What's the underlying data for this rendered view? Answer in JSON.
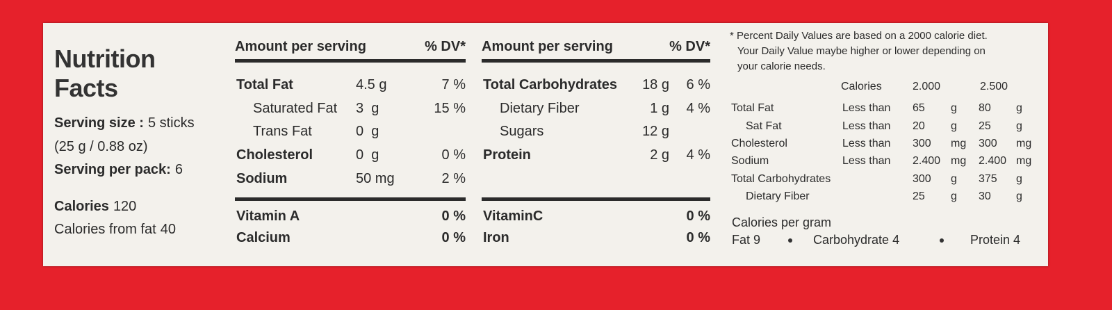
{
  "header": {
    "title": "Nutrition Facts"
  },
  "serving": {
    "size_label": "Serving size :",
    "size": "5 sticks",
    "weight": "(25 g / 0.88 oz)",
    "per_pack_label": "Serving per pack:",
    "per_pack": "6"
  },
  "calories": {
    "label": "Calories",
    "value": "120",
    "from_fat_label": "Calories from fat",
    "from_fat": "40"
  },
  "columns": [
    {
      "amount_header": "Amount per serving",
      "dv_header": "% DV*",
      "rows": [
        {
          "name": "Total Fat",
          "amount": "4.5 g",
          "dv": "7 %",
          "style": "bold"
        },
        {
          "name": "Saturated Fat",
          "amount": "3  g",
          "dv": "15 %",
          "style": "indent"
        },
        {
          "name": "Trans Fat",
          "amount": "0  g",
          "style": "indent"
        },
        {
          "name": "Cholesterol",
          "amount": "0  g",
          "dv": "0 %",
          "style": "bold"
        },
        {
          "name": "Sodium",
          "amount": "50 mg",
          "dv": "2 %",
          "style": "bold"
        }
      ],
      "vitamins": [
        {
          "name": "Vitamin A",
          "dv": "0 %"
        },
        {
          "name": "Calcium",
          "dv": "0 %"
        }
      ]
    },
    {
      "amount_header": "Amount per serving",
      "dv_header": "% DV*",
      "rows": [
        {
          "name": "Total Carbohydrates",
          "amount": "18 g",
          "dv": "6 %",
          "style": "bold"
        },
        {
          "name": "Dietary Fiber",
          "amount": "1 g",
          "dv": "4 %",
          "style": "indent"
        },
        {
          "name": "Sugars",
          "amount": "12 g",
          "style": "indent"
        },
        {
          "name": "Protein",
          "amount": "2 g",
          "dv": "4 %",
          "style": "bold"
        }
      ],
      "vitamins": [
        {
          "name": "VitaminC",
          "dv": "0 %"
        },
        {
          "name": "Iron",
          "dv": "0 %"
        }
      ]
    }
  ],
  "footnote": {
    "lines": [
      "* Percent Daily Values are based on a 2000 calorie diet.",
      "Your Daily Value maybe higher or lower depending on",
      "your calorie needs."
    ],
    "table": {
      "header": [
        "Calories",
        "2.000",
        "2.500"
      ],
      "rows": [
        {
          "name": "Total Fat",
          "limit": "Less than",
          "v1": "65",
          "u1": "g",
          "v2": "80",
          "u2": "g"
        },
        {
          "name": "Sat Fat",
          "limit": "Less than",
          "v1": "20",
          "u1": "g",
          "v2": "25",
          "u2": "g",
          "style": "indent"
        },
        {
          "name": "Cholesterol",
          "limit": "Less than",
          "v1": "300",
          "u1": "mg",
          "v2": "300",
          "u2": "mg"
        },
        {
          "name": "Sodium",
          "limit": "Less than",
          "v1": "2.400",
          "u1": "mg",
          "v2": "2.400",
          "u2": "mg"
        },
        {
          "name": "Total Carbohydrates",
          "v1": "300",
          "u1": "g",
          "v2": "375",
          "u2": "g"
        },
        {
          "name": "Dietary Fiber",
          "v1": "25",
          "u1": "g",
          "v2": "30",
          "u2": "g",
          "style": "indent"
        }
      ]
    },
    "per_gram": {
      "label": "Calories per gram",
      "items": [
        "Fat 9",
        "Carbohydrate 4",
        "Protein 4"
      ]
    }
  }
}
